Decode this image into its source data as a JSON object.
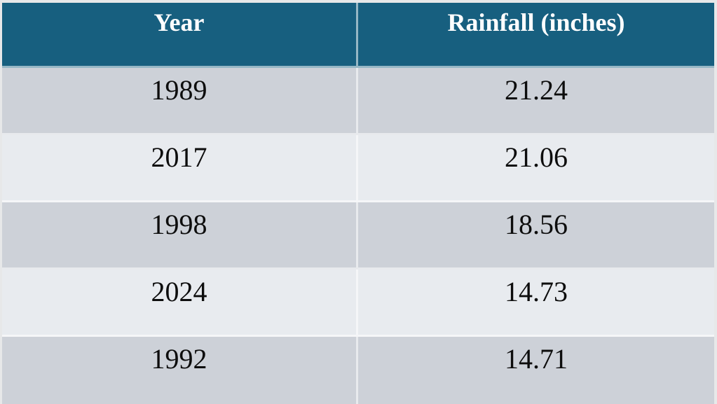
{
  "chart_data": {
    "type": "table",
    "title": "",
    "columns": [
      "Year",
      "Rainfall (inches)"
    ],
    "rows": [
      [
        "1989",
        "21.24"
      ],
      [
        "2017",
        "21.06"
      ],
      [
        "1998",
        "18.56"
      ],
      [
        "2024",
        "14.73"
      ],
      [
        "1992",
        "14.71"
      ]
    ]
  },
  "table": {
    "headers": {
      "year": "Year",
      "rainfall": "Rainfall (inches)"
    },
    "rows": [
      {
        "year": "1989",
        "rainfall": "21.24"
      },
      {
        "year": "2017",
        "rainfall": "21.06"
      },
      {
        "year": "1998",
        "rainfall": "18.56"
      },
      {
        "year": "2024",
        "rainfall": "14.73"
      },
      {
        "year": "1992",
        "rainfall": "14.71"
      }
    ]
  },
  "colors": {
    "header_bg": "#175F7F",
    "header_text": "#FFFFFF",
    "row_dark": "#CDD1D8",
    "row_light": "#E8EBEF",
    "cell_text": "#0D0D0D",
    "divider": "rgba(255,255,255,0.55)",
    "page_bg": "#E7E8E9"
  }
}
